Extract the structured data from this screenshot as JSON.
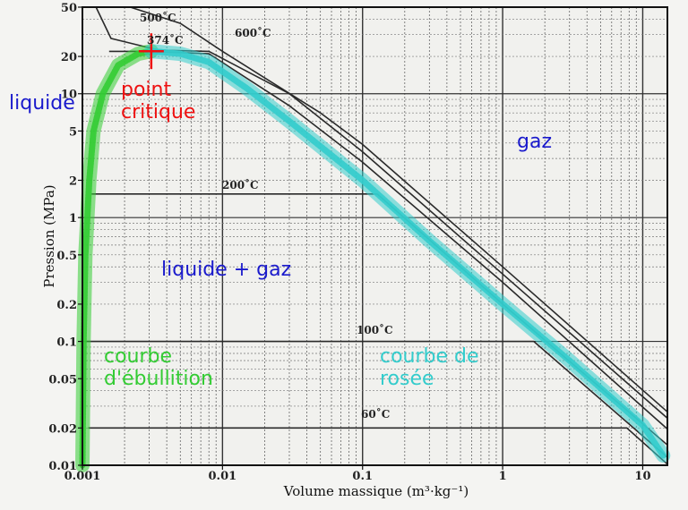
{
  "chart_data": {
    "type": "line",
    "xlabel": "Volume massique (m³·kg⁻¹)",
    "ylabel": "Pression (MPa)",
    "xscale": "log",
    "yscale": "log",
    "xlim": [
      0.001,
      15
    ],
    "ylim": [
      0.01,
      50
    ],
    "grid": true,
    "x_ticks": [
      {
        "value": 0.001,
        "label": "0.001"
      },
      {
        "value": 0.01,
        "label": "0.01"
      },
      {
        "value": 0.1,
        "label": "0.1"
      },
      {
        "value": 1,
        "label": "1"
      },
      {
        "value": 10,
        "label": "10"
      }
    ],
    "y_ticks": [
      {
        "value": 50,
        "label": "50"
      },
      {
        "value": 20,
        "label": "20"
      },
      {
        "value": 10,
        "label": "10"
      },
      {
        "value": 5,
        "label": "5"
      },
      {
        "value": 2,
        "label": "2"
      },
      {
        "value": 1,
        "label": "1"
      },
      {
        "value": 0.5,
        "label": "0.5"
      },
      {
        "value": 0.2,
        "label": "0.2"
      },
      {
        "value": 0.1,
        "label": "0.1"
      },
      {
        "value": 0.05,
        "label": "0.05"
      },
      {
        "value": 0.02,
        "label": "0.02"
      },
      {
        "value": 0.01,
        "label": "0.01"
      }
    ],
    "isotherms": [
      {
        "label": "60˚C",
        "points": [
          [
            0.0011,
            0.02
          ],
          [
            7.7,
            0.02
          ],
          [
            15,
            0.0102
          ]
        ]
      },
      {
        "label": "100˚C",
        "points": [
          [
            0.00104,
            0.1
          ],
          [
            1.67,
            0.1
          ],
          [
            15,
            0.0116
          ]
        ]
      },
      {
        "label": "200˚C",
        "points": [
          [
            0.00116,
            1.55
          ],
          [
            0.127,
            1.55
          ],
          [
            1.0,
            0.2
          ],
          [
            15,
            0.0146
          ]
        ]
      },
      {
        "label": "374˚C",
        "points": [
          [
            0.00155,
            22
          ],
          [
            0.003,
            22
          ],
          [
            0.008,
            21
          ],
          [
            0.03,
            8
          ],
          [
            0.1,
            2.8
          ],
          [
            1,
            0.3
          ],
          [
            15,
            0.0196
          ]
        ]
      },
      {
        "label": "500˚C",
        "points": [
          [
            0.00125,
            50
          ],
          [
            0.0016,
            28
          ],
          [
            0.0035,
            22.5
          ],
          [
            0.008,
            22
          ],
          [
            0.03,
            10
          ],
          [
            0.1,
            3.4
          ],
          [
            1,
            0.35
          ],
          [
            15,
            0.024
          ]
        ]
      },
      {
        "label": "600˚C",
        "points": [
          [
            0.0022,
            50
          ],
          [
            0.005,
            37
          ],
          [
            0.01,
            22
          ],
          [
            0.05,
            7
          ],
          [
            0.1,
            3.9
          ],
          [
            1,
            0.4
          ],
          [
            15,
            0.027
          ]
        ]
      }
    ],
    "courbe_ebullition": {
      "label": "courbe d'ébullition",
      "color": "#33cc33",
      "points": [
        [
          0.001,
          0.01
        ],
        [
          0.00102,
          0.1
        ],
        [
          0.00105,
          0.5
        ],
        [
          0.00112,
          2
        ],
        [
          0.0012,
          5
        ],
        [
          0.0014,
          10
        ],
        [
          0.0018,
          17
        ],
        [
          0.0025,
          21
        ],
        [
          0.0031,
          22.06
        ]
      ]
    },
    "courbe_rosee": {
      "label": "courbe de rosée",
      "color": "#33cccc",
      "points": [
        [
          0.0031,
          22.06
        ],
        [
          0.005,
          21
        ],
        [
          0.008,
          18
        ],
        [
          0.015,
          11
        ],
        [
          0.03,
          6
        ],
        [
          0.1,
          2
        ],
        [
          0.3,
          0.65
        ],
        [
          1,
          0.2
        ],
        [
          3,
          0.07
        ],
        [
          10,
          0.021
        ],
        [
          14,
          0.012
        ]
      ]
    },
    "point_critique": {
      "label": "point critique",
      "x": 0.0031,
      "y": 22.06,
      "color": "#ee1111"
    },
    "annotations": [
      {
        "text": "liquide",
        "color": "#1a1acc"
      },
      {
        "text": "gaz",
        "color": "#1a1acc"
      },
      {
        "text": "liquide + gaz",
        "color": "#1a1acc"
      }
    ]
  }
}
